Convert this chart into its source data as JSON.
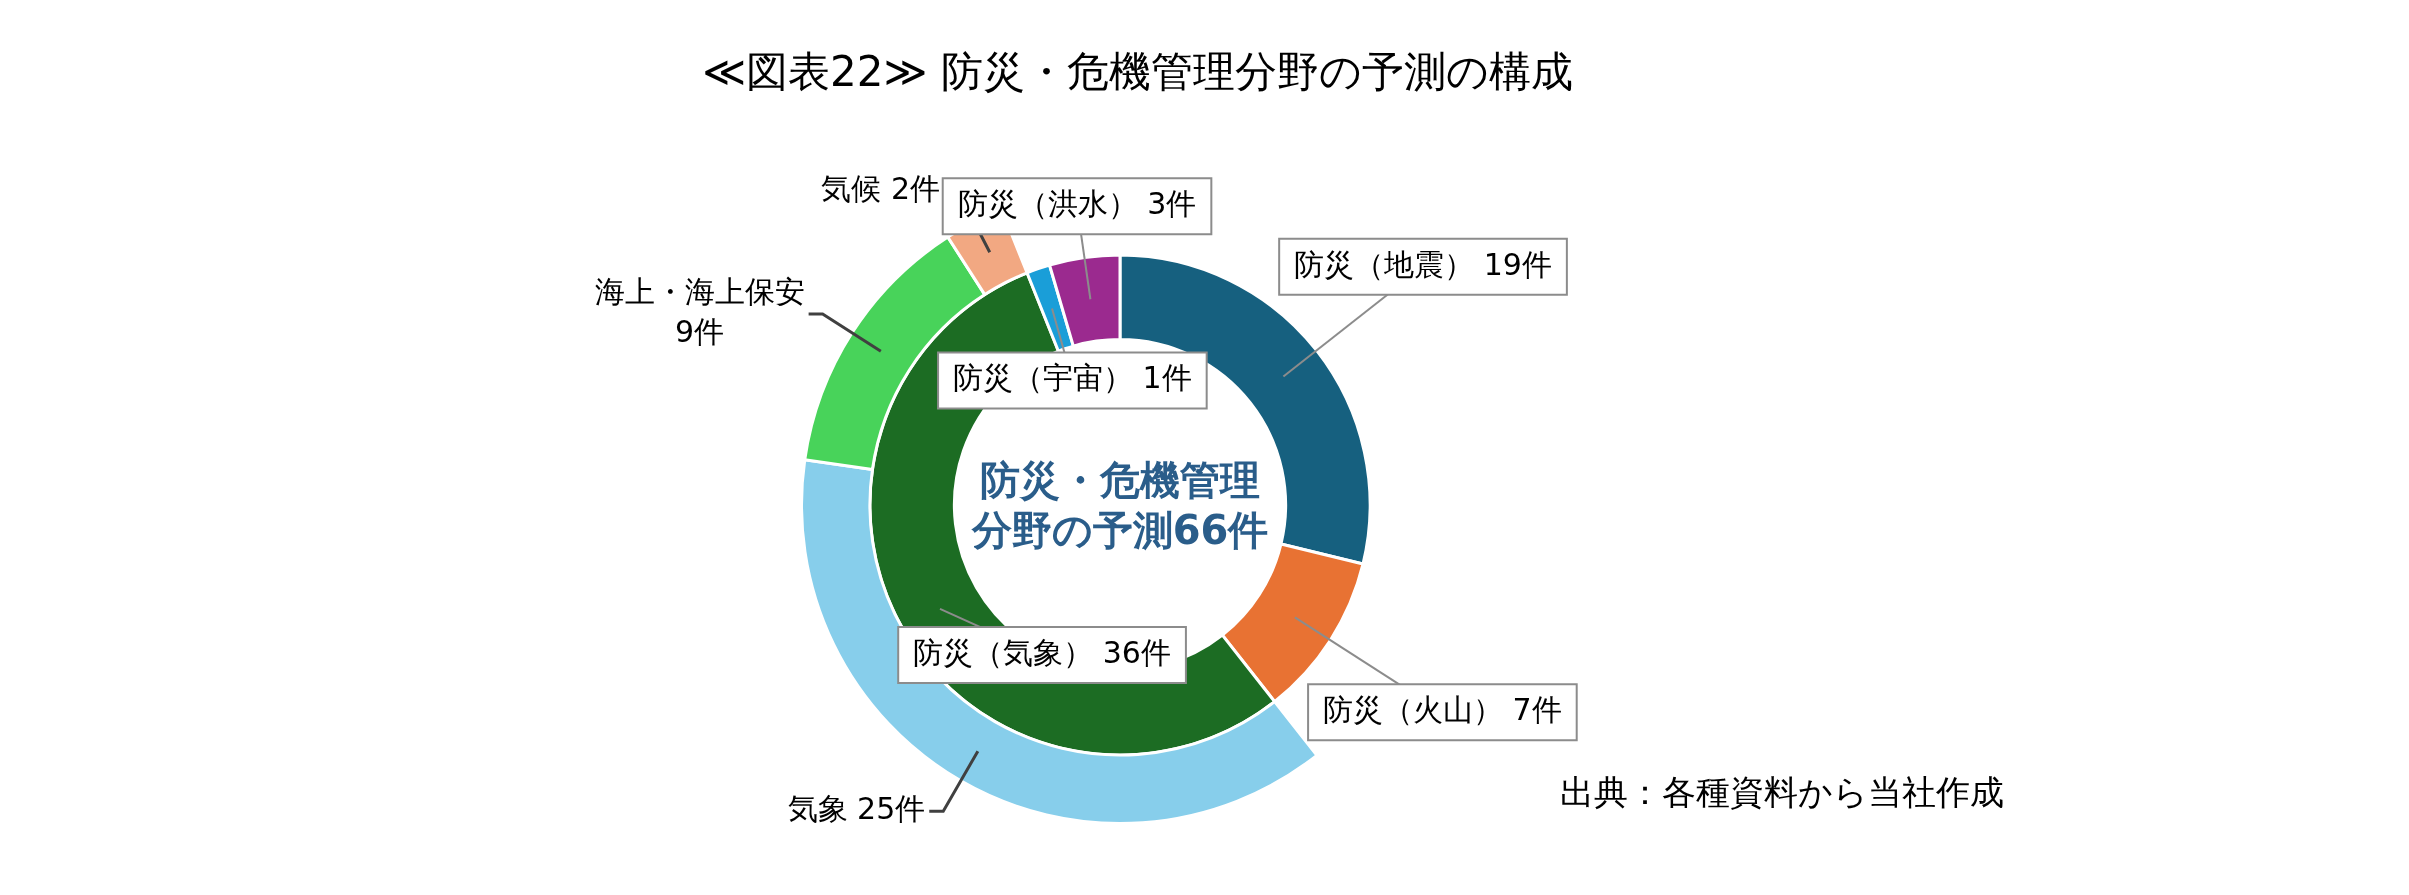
{
  "chart_data": {
    "type": "donut",
    "title": "≪図表22≫ 防災・危機管理分野の予測の構成",
    "categories": [
      "防災（地震）",
      "防災（火山）",
      "防災（気象）",
      "防災（宇宙）",
      "防災（洪水）",
      "気象",
      "海上・海上保安",
      "気候"
    ],
    "colors": [
      "#16607f",
      "#e87233",
      "#1c6c23",
      "#1a9ed8",
      "#9b2a8f",
      "#87ceeb",
      "#48d35a",
      "#f2a882"
    ],
    "series": [
      {
        "values": [
          null,
          null,
          null,
          null,
          null,
          25,
          9,
          2
        ],
        "value_labels": [
          null,
          null,
          null,
          null,
          null,
          "25件",
          "9件",
          "2件"
        ]
      },
      {
        "values": [
          19,
          7,
          36,
          1,
          3,
          null,
          null,
          null
        ],
        "value_labels": [
          "19件",
          "7件",
          "36件",
          "1件",
          "3件",
          null,
          null,
          null
        ]
      }
    ],
    "annotations": [
      "防災・危機管理分野の予測66件",
      "出典：各種資料から当社作成"
    ]
  }
}
